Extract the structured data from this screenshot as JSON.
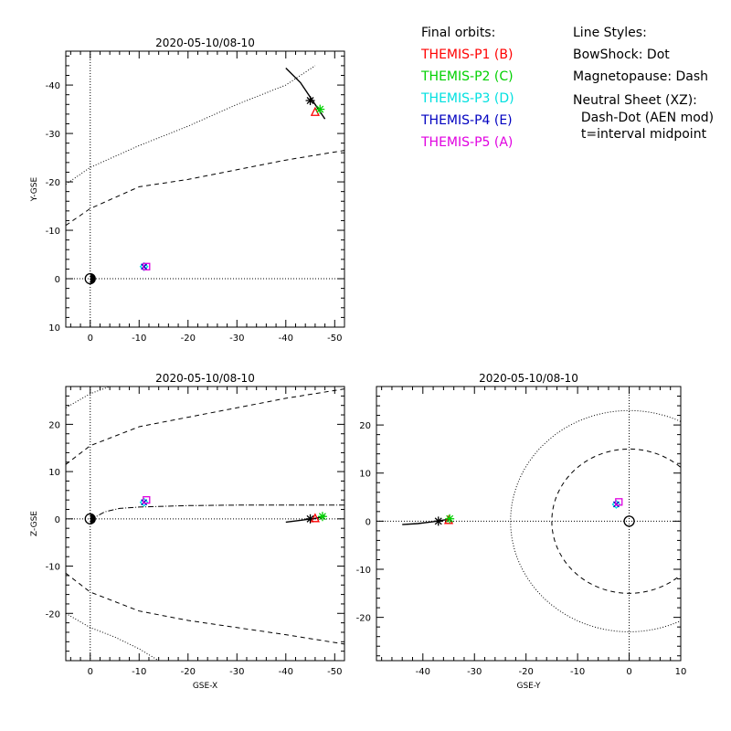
{
  "legend": {
    "orbits_title": "Final orbits:",
    "probes": [
      {
        "label": "THEMIS-P1 (B)",
        "color": "#ff0000"
      },
      {
        "label": "THEMIS-P2 (C)",
        "color": "#00d000"
      },
      {
        "label": "THEMIS-P3 (D)",
        "color": "#00e0e0"
      },
      {
        "label": "THEMIS-P4 (E)",
        "color": "#0000c0"
      },
      {
        "label": "THEMIS-P5 (A)",
        "color": "#e000e0"
      }
    ],
    "styles_title": "Line Styles:",
    "styles": [
      "BowShock: Dot",
      "Magnetopause: Dash",
      "Neutral Sheet (XZ):",
      "  Dash-Dot (AEN mod)",
      "  t=interval midpoint"
    ]
  },
  "chart_data": [
    {
      "type": "scatter",
      "title": "2020-05-10/08-10",
      "xlabel": "",
      "ylabel": "Y-GSE",
      "xlim": [
        5,
        -52
      ],
      "ylim": [
        10,
        -47
      ],
      "xticks": [
        0,
        -10,
        -20,
        -30,
        -40,
        -50
      ],
      "yticks": [
        10,
        0,
        -10,
        -20,
        -30,
        -40
      ],
      "grid": false,
      "bowshock": [
        [
          5,
          -19.5
        ],
        [
          0,
          -23
        ],
        [
          -10,
          -27.5
        ],
        [
          -20,
          -31.5
        ],
        [
          -30,
          -36
        ],
        [
          -40,
          -40
        ],
        [
          -46,
          -44
        ]
      ],
      "magnetopause": [
        [
          5,
          -11
        ],
        [
          0,
          -14.5
        ],
        [
          -10,
          -19
        ],
        [
          -20,
          -20.5
        ],
        [
          -30,
          -22.5
        ],
        [
          -40,
          -24.5
        ],
        [
          -52,
          -26.5
        ]
      ],
      "p1_track": [
        [
          -40,
          -43.5
        ],
        [
          -43,
          -40.5
        ],
        [
          -46,
          -36
        ],
        [
          -48,
          -33
        ]
      ],
      "probes": [
        {
          "probe": "THEMIS-P1 (B)",
          "x": -46,
          "y": -34.5
        },
        {
          "probe": "THEMIS-P2 (C)",
          "x": -47,
          "y": -35
        },
        {
          "probe": "THEMIS-P3 (D)",
          "x": -11,
          "y": -2.5
        },
        {
          "probe": "THEMIS-P4 (E)",
          "x": -11,
          "y": -2.5
        },
        {
          "probe": "THEMIS-P5 (A)",
          "x": -11.5,
          "y": -2.5
        }
      ]
    },
    {
      "type": "scatter",
      "title": "2020-05-10/08-10",
      "xlabel": "GSE-X",
      "ylabel": "Z-GSE",
      "xlim": [
        5,
        -52
      ],
      "ylim": [
        -30,
        28
      ],
      "xticks": [
        0,
        -10,
        -20,
        -30,
        -40,
        -50
      ],
      "yticks": [
        20,
        10,
        0,
        -10,
        -20
      ],
      "grid": false,
      "bowshock_upper": [
        [
          5,
          23.5
        ],
        [
          0,
          26.5
        ],
        [
          -4,
          28
        ]
      ],
      "bowshock_lower": [
        [
          5,
          -20
        ],
        [
          0,
          -23
        ],
        [
          -5,
          -25
        ],
        [
          -10,
          -27.5
        ],
        [
          -14,
          -30
        ]
      ],
      "magnetopause_upper": [
        [
          5,
          11.5
        ],
        [
          0,
          15.5
        ],
        [
          -10,
          19.5
        ],
        [
          -20,
          21.5
        ],
        [
          -30,
          23.5
        ],
        [
          -40,
          25.5
        ],
        [
          -52,
          27.5
        ]
      ],
      "magnetopause_lower": [
        [
          5,
          -11.5
        ],
        [
          0,
          -15.5
        ],
        [
          -10,
          -19.5
        ],
        [
          -20,
          -21.5
        ],
        [
          -30,
          -23
        ],
        [
          -40,
          -24.5
        ],
        [
          -52,
          -26.5
        ]
      ],
      "neutral_sheet": [
        [
          0,
          -0.2
        ],
        [
          -3,
          1.5
        ],
        [
          -6,
          2.2
        ],
        [
          -10,
          2.5
        ],
        [
          -20,
          2.8
        ],
        [
          -30,
          2.9
        ],
        [
          -52,
          2.9
        ]
      ],
      "p1_track": [
        [
          -40,
          -0.7
        ],
        [
          -43,
          -0.3
        ],
        [
          -46,
          0.1
        ],
        [
          -48,
          0.6
        ]
      ],
      "probes": [
        {
          "probe": "THEMIS-P1 (B)",
          "x": -46,
          "y": 0.2
        },
        {
          "probe": "THEMIS-P2 (C)",
          "x": -47.5,
          "y": 0.5
        },
        {
          "probe": "THEMIS-P3 (D)",
          "x": -11,
          "y": 3.5
        },
        {
          "probe": "THEMIS-P4 (E)",
          "x": -11,
          "y": 3.5
        },
        {
          "probe": "THEMIS-P5 (A)",
          "x": -11.5,
          "y": 4
        }
      ]
    },
    {
      "type": "scatter",
      "title": "2020-05-10/08-10",
      "xlabel": "GSE-Y",
      "ylabel": "",
      "xlim": [
        -49,
        10
      ],
      "ylim": [
        -29,
        28
      ],
      "xticks": [
        -40,
        -30,
        -20,
        -10,
        0,
        10
      ],
      "yticks": [
        20,
        10,
        0,
        -10,
        -20
      ],
      "grid": false,
      "bowshock_radius": 23,
      "magnetopause_radius": 15,
      "p1_track": [
        [
          -44,
          -0.7
        ],
        [
          -41,
          -0.5
        ],
        [
          -38,
          -0.1
        ],
        [
          -35,
          0.4
        ]
      ],
      "probes": [
        {
          "probe": "THEMIS-P1 (B)",
          "x": -35,
          "y": 0.3
        },
        {
          "probe": "THEMIS-P2 (C)",
          "x": -34.8,
          "y": 0.5
        },
        {
          "probe": "THEMIS-P3 (D)",
          "x": -2.5,
          "y": 3.5
        },
        {
          "probe": "THEMIS-P4 (E)",
          "x": -2.5,
          "y": 3.5
        },
        {
          "probe": "THEMIS-P5 (A)",
          "x": -2,
          "y": 4
        }
      ]
    }
  ]
}
